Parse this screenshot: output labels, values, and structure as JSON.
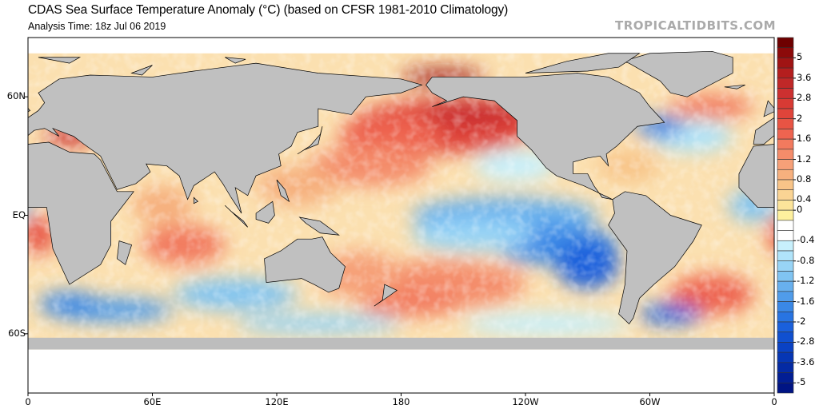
{
  "header": {
    "title": "CDAS Sea Surface Temperature Anomaly (°C) (based on CFSR 1981-2010 Climatology)",
    "analysis_time": "Analysis Time: 18z Jul 06 2019",
    "watermark": "TROPICALTIDBITS.COM"
  },
  "axes": {
    "lat_labels": [
      {
        "label": "60N",
        "lat": 60
      },
      {
        "label": "EQ",
        "lat": 0
      },
      {
        "label": "60S",
        "lat": -60
      }
    ],
    "lon_labels": [
      {
        "label": "0",
        "lon": 0
      },
      {
        "label": "60E",
        "lon": 60
      },
      {
        "label": "120E",
        "lon": 120
      },
      {
        "label": "180",
        "lon": 180
      },
      {
        "label": "120W",
        "lon": 240
      },
      {
        "label": "60W",
        "lon": 300
      },
      {
        "label": "0",
        "lon": 360
      }
    ]
  },
  "colorbar": {
    "units": "°C",
    "labels": [
      "5",
      "3.6",
      "2.8",
      "2",
      "1.6",
      "1.2",
      "0.8",
      "0.4",
      "0",
      "-0.4",
      "-0.8",
      "-1.2",
      "-1.6",
      "-2",
      "-2.8",
      "-3.6",
      "-5"
    ],
    "colors": [
      "#6e0000",
      "#8c0a0a",
      "#a01414",
      "#b41e1e",
      "#c02828",
      "#cc3030",
      "#d83a34",
      "#e0443a",
      "#e85444",
      "#ee6450",
      "#f27a5e",
      "#f48c6a",
      "#f6a078",
      "#f6b07e",
      "#f8c488",
      "#fad494",
      "#fce49a",
      "#fef09e",
      "#ffffff",
      "#ffffff",
      "#c8f0fc",
      "#b0e4fa",
      "#98d4f6",
      "#80c4f2",
      "#68b0ee",
      "#509cea",
      "#3a88e6",
      "#2874e2",
      "#1a60dc",
      "#1050d0",
      "#0a42c4",
      "#0636b4",
      "#042aa4",
      "#021e94",
      "#001484"
    ]
  }
}
